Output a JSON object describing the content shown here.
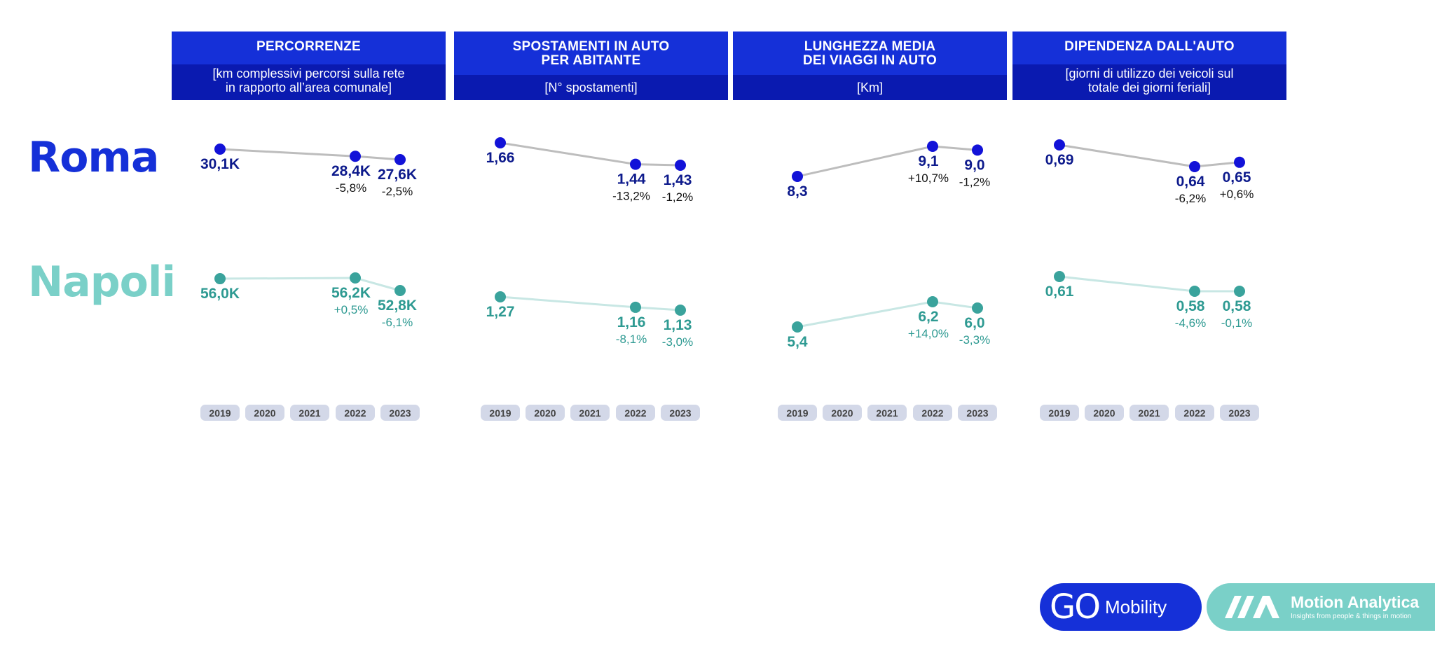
{
  "panels": [
    {
      "title_line1": "PERCORRENZE",
      "title_line2": "",
      "subtitle_line1": "[km complessivi percorsi sulla rete",
      "subtitle_line2": "in rapporto all’area comunale]"
    },
    {
      "title_line1": "SPOSTAMENTI IN AUTO",
      "title_line2": "PER ABITANTE",
      "subtitle_line1": "[N° spostamenti]",
      "subtitle_line2": ""
    },
    {
      "title_line1": "LUNGHEZZA MEDIA",
      "title_line2": "DEI VIAGGI IN AUTO",
      "subtitle_line1": "[Km]",
      "subtitle_line2": ""
    },
    {
      "title_line1": "DIPENDENZA DALL'AUTO",
      "title_line2": "",
      "subtitle_line1": "[giorni di utilizzo dei veicoli sul",
      "subtitle_line2": "totale dei giorni feriali]"
    }
  ],
  "cities": {
    "roma": "Roma",
    "napoli": "Napoli"
  },
  "colors": {
    "roma": "#1212d8",
    "roma_text": "#0d1a8c",
    "napoli": "#3aa39c",
    "napoli_text": "#2e9a92",
    "roma_line": "#bdbdbd",
    "napoli_line": "#c8e7e4",
    "year_pill": "#d3d8e8"
  },
  "chart_data": [
    {
      "type": "line",
      "title": "PERCORRENZE",
      "x": [
        "2019",
        "2020",
        "2021",
        "2022",
        "2023"
      ],
      "series": [
        {
          "name": "Roma",
          "points": [
            {
              "x": "2019",
              "y": 30.1,
              "label": "30,1K",
              "change": ""
            },
            {
              "x": "2022",
              "y": 28.4,
              "label": "28,4K",
              "change": "-5,8%"
            },
            {
              "x": "2023",
              "y": 27.6,
              "label": "27,6K",
              "change": "-2,5%"
            }
          ]
        },
        {
          "name": "Napoli",
          "points": [
            {
              "x": "2019",
              "y": 56.0,
              "label": "56,0K",
              "change": ""
            },
            {
              "x": "2022",
              "y": 56.2,
              "label": "56,2K",
              "change": "+0,5%"
            },
            {
              "x": "2023",
              "y": 52.8,
              "label": "52,8K",
              "change": "-6,1%"
            }
          ]
        }
      ]
    },
    {
      "type": "line",
      "title": "SPOSTAMENTI IN AUTO PER ABITANTE",
      "x": [
        "2019",
        "2020",
        "2021",
        "2022",
        "2023"
      ],
      "series": [
        {
          "name": "Roma",
          "points": [
            {
              "x": "2019",
              "y": 1.66,
              "label": "1,66",
              "change": ""
            },
            {
              "x": "2022",
              "y": 1.44,
              "label": "1,44",
              "change": "-13,2%"
            },
            {
              "x": "2023",
              "y": 1.43,
              "label": "1,43",
              "change": "-1,2%"
            }
          ]
        },
        {
          "name": "Napoli",
          "points": [
            {
              "x": "2019",
              "y": 1.27,
              "label": "1,27",
              "change": ""
            },
            {
              "x": "2022",
              "y": 1.16,
              "label": "1,16",
              "change": "-8,1%"
            },
            {
              "x": "2023",
              "y": 1.13,
              "label": "1,13",
              "change": "-3,0%"
            }
          ]
        }
      ]
    },
    {
      "type": "line",
      "title": "LUNGHEZZA MEDIA DEI VIAGGI IN AUTO",
      "x": [
        "2019",
        "2020",
        "2021",
        "2022",
        "2023"
      ],
      "series": [
        {
          "name": "Roma",
          "points": [
            {
              "x": "2019",
              "y": 8.3,
              "label": "8,3",
              "change": ""
            },
            {
              "x": "2022",
              "y": 9.1,
              "label": "9,1",
              "change": "+10,7%"
            },
            {
              "x": "2023",
              "y": 9.0,
              "label": "9,0",
              "change": "-1,2%"
            }
          ]
        },
        {
          "name": "Napoli",
          "points": [
            {
              "x": "2019",
              "y": 5.4,
              "label": "5,4",
              "change": ""
            },
            {
              "x": "2022",
              "y": 6.2,
              "label": "6,2",
              "change": "+14,0%"
            },
            {
              "x": "2023",
              "y": 6.0,
              "label": "6,0",
              "change": "-3,3%"
            }
          ]
        }
      ]
    },
    {
      "type": "line",
      "title": "DIPENDENZA DALL'AUTO",
      "x": [
        "2019",
        "2020",
        "2021",
        "2022",
        "2023"
      ],
      "series": [
        {
          "name": "Roma",
          "points": [
            {
              "x": "2019",
              "y": 0.69,
              "label": "0,69",
              "change": ""
            },
            {
              "x": "2022",
              "y": 0.64,
              "label": "0,64",
              "change": "-6,2%"
            },
            {
              "x": "2023",
              "y": 0.65,
              "label": "0,65",
              "change": "+0,6%"
            }
          ]
        },
        {
          "name": "Napoli",
          "points": [
            {
              "x": "2019",
              "y": 0.61,
              "label": "0,61",
              "change": ""
            },
            {
              "x": "2022",
              "y": 0.58,
              "label": "0,58",
              "change": "-4,6%"
            },
            {
              "x": "2023",
              "y": 0.58,
              "label": "0,58",
              "change": "-0,1%"
            }
          ]
        }
      ]
    }
  ],
  "logos": {
    "go_mark": "GO",
    "go_text": "Mobility",
    "motion_name": "Motion Analytica",
    "motion_tagline": "Insights from people & things in motion"
  }
}
